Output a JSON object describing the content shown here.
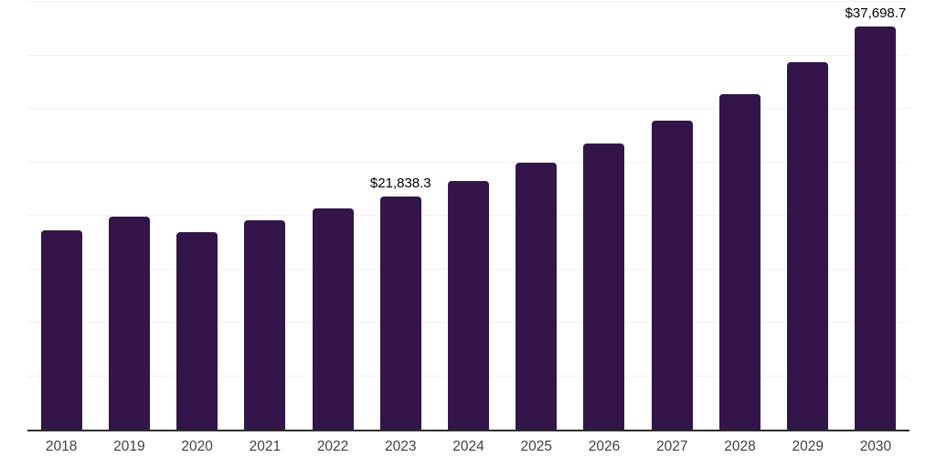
{
  "chart_data": {
    "type": "bar",
    "categories": [
      "2018",
      "2019",
      "2020",
      "2021",
      "2022",
      "2023",
      "2024",
      "2025",
      "2026",
      "2027",
      "2028",
      "2029",
      "2030"
    ],
    "values": [
      18600,
      19900,
      18450,
      19600,
      20650,
      21838.3,
      23270,
      24930,
      26720,
      28900,
      31400,
      34330,
      37698.7
    ],
    "data_labels": {
      "2023": "$21,838.3",
      "2030": "$37,698.7"
    },
    "title": "",
    "xlabel": "",
    "ylabel": "",
    "ylim": [
      0,
      40000
    ],
    "grid_interval": 5000,
    "grid_visible": true,
    "legend_position": "none",
    "colors": {
      "bar": "#331549",
      "axis_line": "#2d2d2d",
      "gridline": "#f1f1f1",
      "tick_label": "#404040",
      "data_label": "#000000"
    }
  }
}
